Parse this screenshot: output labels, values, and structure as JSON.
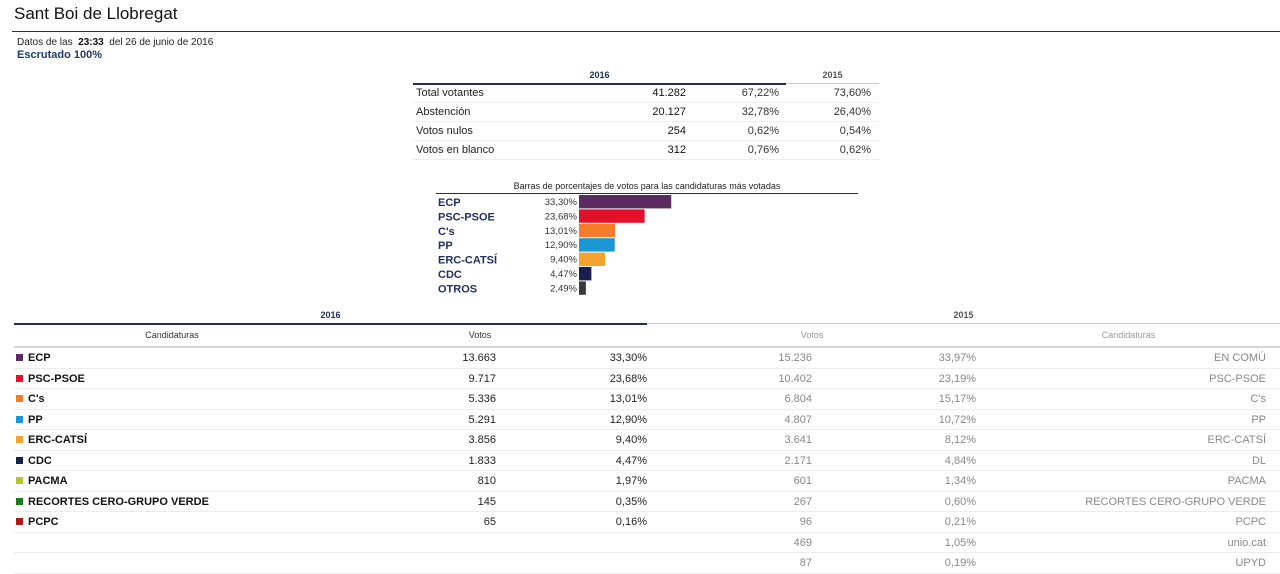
{
  "page": {
    "title": "Sant Boi de Llobregat",
    "data_prefix": "Datos de las",
    "time": "23:33",
    "date_text": "del 26 de junio de 2016",
    "scrutiny": "Escrutado 100%"
  },
  "summary": {
    "year_current": "2016",
    "year_prev": "2015",
    "rows": [
      {
        "label": "Total votantes",
        "value": "41.282",
        "pct": "67,22%",
        "pct_prev": "73,60%"
      },
      {
        "label": "Abstención",
        "value": "20.127",
        "pct": "32,78%",
        "pct_prev": "26,40%"
      },
      {
        "label": "Votos nulos",
        "value": "254",
        "pct": "0,62%",
        "pct_prev": "0,54%"
      },
      {
        "label": "Votos en blanco",
        "value": "312",
        "pct": "0,76%",
        "pct_prev": "0,62%"
      }
    ]
  },
  "chart_data": {
    "type": "bar",
    "title": "Barras de porcentajes de votos para las candidaturas más votadas",
    "categories": [
      "ECP",
      "PSC-PSOE",
      "C's",
      "PP",
      "ERC-CATSÍ",
      "CDC",
      "OTROS"
    ],
    "values": [
      33.3,
      23.68,
      13.01,
      12.9,
      9.4,
      4.47,
      2.49
    ],
    "labels": [
      "33,30%",
      "23,68%",
      "13,01%",
      "12,90%",
      "9,40%",
      "4,47%",
      "2,49%"
    ],
    "colors": [
      "#5b2a5f",
      "#e3102a",
      "#f47c2a",
      "#1b97d5",
      "#f5a22f",
      "#1b1f4e",
      "#3a3a3a"
    ],
    "orientation": "horizontal"
  },
  "results": {
    "year_current": "2016",
    "year_prev": "2015",
    "headers": {
      "candidaturas": "Candidaturas",
      "votos": "Votos",
      "votos_prev": "Votos",
      "candidaturas_prev": "Candidaturas"
    },
    "rows": [
      {
        "color": "#5b2a5f",
        "party": "ECP",
        "votes": "13.663",
        "pct": "33,30%",
        "votes_prev": "15.236",
        "pct_prev": "33,97%",
        "party_prev": "EN COMÚ"
      },
      {
        "color": "#e3102a",
        "party": "PSC-PSOE",
        "votes": "9.717",
        "pct": "23,68%",
        "votes_prev": "10.402",
        "pct_prev": "23,19%",
        "party_prev": "PSC-PSOE"
      },
      {
        "color": "#f47c2a",
        "party": "C's",
        "votes": "5.336",
        "pct": "13,01%",
        "votes_prev": "6.804",
        "pct_prev": "15,17%",
        "party_prev": "C's"
      },
      {
        "color": "#1b97d5",
        "party": "PP",
        "votes": "5.291",
        "pct": "12,90%",
        "votes_prev": "4.807",
        "pct_prev": "10,72%",
        "party_prev": "PP"
      },
      {
        "color": "#f5a22f",
        "party": "ERC-CATSÍ",
        "votes": "3.856",
        "pct": "9,40%",
        "votes_prev": "3.641",
        "pct_prev": "8,12%",
        "party_prev": "ERC-CATSÍ"
      },
      {
        "color": "#1b1f4e",
        "party": "CDC",
        "votes": "1.833",
        "pct": "4,47%",
        "votes_prev": "2.171",
        "pct_prev": "4,84%",
        "party_prev": "DL"
      },
      {
        "color": "#b5c42a",
        "party": "PACMA",
        "votes": "810",
        "pct": "1,97%",
        "votes_prev": "601",
        "pct_prev": "1,34%",
        "party_prev": "PACMA"
      },
      {
        "color": "#1c7a1c",
        "party": "RECORTES CERO-GRUPO VERDE",
        "votes": "145",
        "pct": "0,35%",
        "votes_prev": "267",
        "pct_prev": "0,60%",
        "party_prev": "RECORTES CERO-GRUPO VERDE"
      },
      {
        "color": "#b3161b",
        "party": "PCPC",
        "votes": "65",
        "pct": "0,16%",
        "votes_prev": "96",
        "pct_prev": "0,21%",
        "party_prev": "PCPC"
      },
      {
        "color": "",
        "party": "",
        "votes": "",
        "pct": "",
        "votes_prev": "469",
        "pct_prev": "1,05%",
        "party_prev": "unio.cat"
      },
      {
        "color": "",
        "party": "",
        "votes": "",
        "pct": "",
        "votes_prev": "87",
        "pct_prev": "0,19%",
        "party_prev": "UPYD"
      }
    ]
  }
}
